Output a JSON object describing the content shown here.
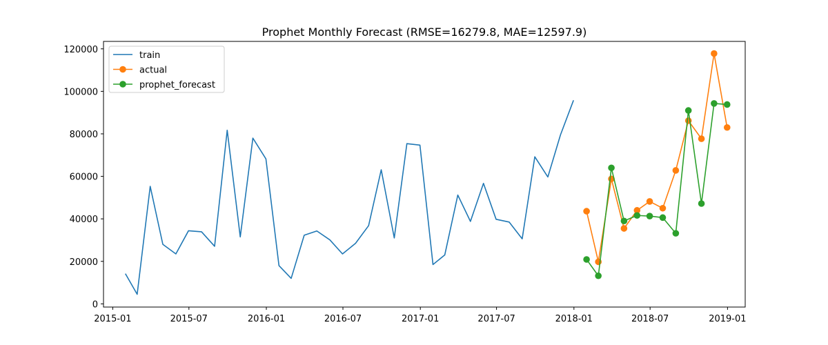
{
  "chart_data": {
    "type": "line",
    "title": "Prophet Monthly Forecast (RMSE=16279.8, MAE=12597.9)",
    "xlabel": "",
    "ylabel": "",
    "xlim": [
      "2014-12-10",
      "2019-02-12"
    ],
    "ylim": [
      -1500,
      123500
    ],
    "x_ticks": [
      "2015-01",
      "2015-07",
      "2016-01",
      "2016-07",
      "2017-01",
      "2017-07",
      "2018-01",
      "2018-07",
      "2019-01"
    ],
    "y_ticks": [
      0,
      20000,
      40000,
      60000,
      80000,
      100000,
      120000
    ],
    "grid": false,
    "legend_position": "top-left",
    "series": [
      {
        "name": "train",
        "color": "#1f77b4",
        "marker": "none",
        "x": [
          "2015-01-31",
          "2015-02-28",
          "2015-03-31",
          "2015-04-30",
          "2015-05-31",
          "2015-06-30",
          "2015-07-31",
          "2015-08-31",
          "2015-09-30",
          "2015-10-31",
          "2015-11-30",
          "2015-12-31",
          "2016-01-31",
          "2016-02-29",
          "2016-03-31",
          "2016-04-30",
          "2016-05-31",
          "2016-06-30",
          "2016-07-31",
          "2016-08-31",
          "2016-09-30",
          "2016-10-31",
          "2016-11-30",
          "2016-12-31",
          "2017-01-31",
          "2017-02-28",
          "2017-03-31",
          "2017-04-30",
          "2017-05-31",
          "2017-06-30",
          "2017-07-31",
          "2017-08-31",
          "2017-09-30",
          "2017-10-31",
          "2017-11-30",
          "2017-12-31"
        ],
        "values": [
          14200,
          4500,
          55300,
          28000,
          23500,
          34400,
          33900,
          27100,
          81700,
          31500,
          78000,
          68200,
          18000,
          12000,
          32300,
          34300,
          30100,
          23500,
          28500,
          36800,
          63100,
          31000,
          75400,
          74700,
          18500,
          23000,
          51200,
          38800,
          56700,
          39800,
          38500,
          30600,
          69200,
          59700,
          79500,
          95800
        ]
      },
      {
        "name": "actual",
        "color": "#ff7f0e",
        "marker": "circle",
        "x": [
          "2018-01-31",
          "2018-02-28",
          "2018-03-31",
          "2018-04-30",
          "2018-05-31",
          "2018-06-30",
          "2018-07-31",
          "2018-08-31",
          "2018-09-30",
          "2018-10-31",
          "2018-11-30",
          "2018-12-31"
        ],
        "values": [
          43600,
          19800,
          58800,
          35500,
          44000,
          48200,
          45000,
          62800,
          86200,
          77700,
          117800,
          83000
        ]
      },
      {
        "name": "prophet_forecast",
        "color": "#2ca02c",
        "marker": "circle",
        "x": [
          "2018-01-31",
          "2018-02-28",
          "2018-03-31",
          "2018-04-30",
          "2018-05-31",
          "2018-06-30",
          "2018-07-31",
          "2018-08-31",
          "2018-09-30",
          "2018-10-31",
          "2018-11-30",
          "2018-12-31"
        ],
        "values": [
          20900,
          13200,
          64000,
          39000,
          41600,
          41300,
          40600,
          33200,
          91000,
          47200,
          94300,
          93800
        ]
      }
    ]
  }
}
